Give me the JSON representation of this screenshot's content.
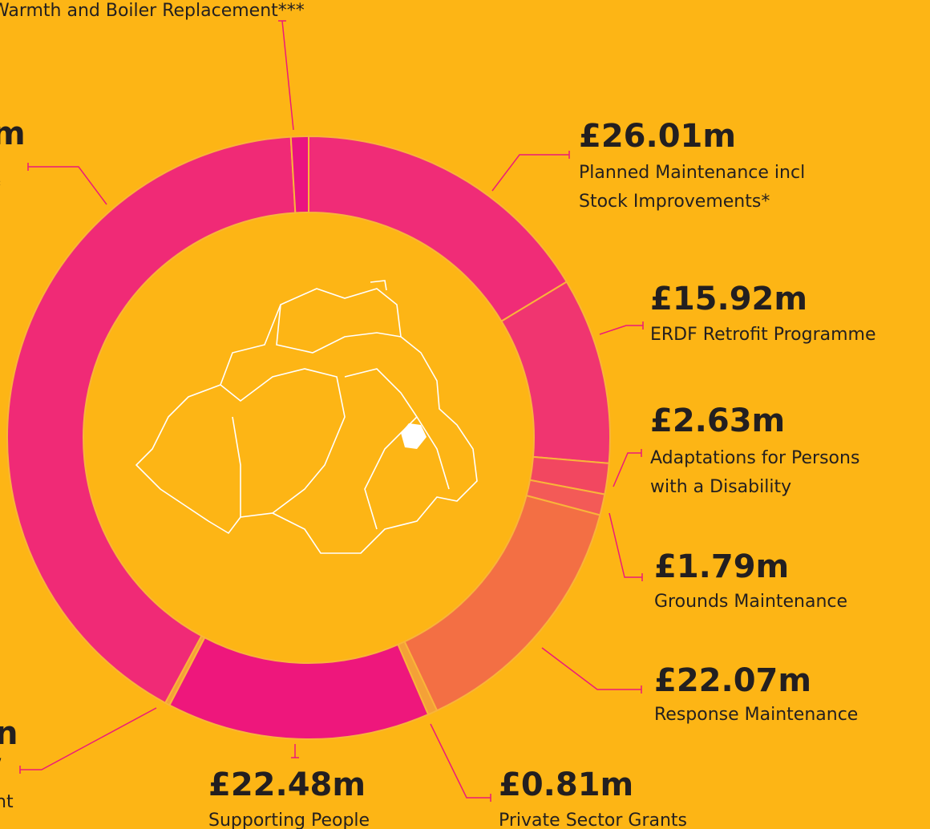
{
  "chart_data": {
    "type": "donut",
    "categories": [
      [
        "Planned Maintenance incl",
        "Stock Improvements*"
      ],
      [
        "ERDF Retrofit Programme"
      ],
      [
        "Adaptations for Persons",
        "with a Disability"
      ],
      [
        "Grounds Maintenance"
      ],
      [
        "Response Maintenance"
      ],
      [
        "Private Sector Grants"
      ],
      [
        "Supporting People"
      ],
      [
        "/",
        "nt"
      ],
      [
        "*"
      ],
      [
        "Warmth and Boiler Replacement***"
      ]
    ],
    "values": [
      26.01,
      15.92,
      2.63,
      1.79,
      22.07,
      0.81,
      22.48,
      0.4,
      65.5,
      1.5
    ],
    "value_labels": [
      "£26.01m",
      "£15.92m",
      "£2.63m",
      "£1.79m",
      "£22.07m",
      "£0.81m",
      "£22.48m",
      "n",
      "m",
      null
    ],
    "colors": [
      "#f02c77",
      "#f03570",
      "#f24760",
      "#f35a57",
      "#f36f44",
      "#f4a137",
      "#ee177c",
      "#f4a137",
      "#f02a76",
      "#ea1480"
    ]
  }
}
